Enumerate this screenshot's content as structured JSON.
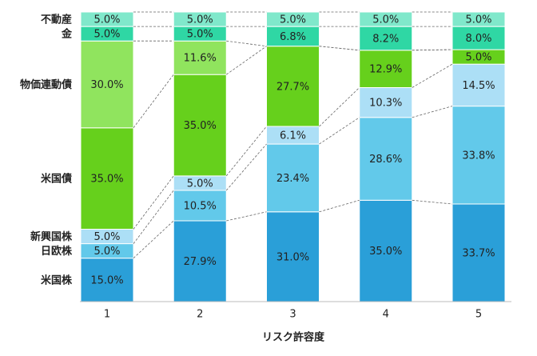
{
  "chart_data": {
    "type": "stacked-bar",
    "x_label": "リスク許容度",
    "categories": [
      "1",
      "2",
      "3",
      "4",
      "5"
    ],
    "series": [
      {
        "name": "米国株",
        "color": "#2a9fd8",
        "values": [
          15.0,
          27.9,
          31.0,
          35.0,
          33.7
        ],
        "value_labels": [
          "15.0%",
          "27.9%",
          "31.0%",
          "35.0%",
          "33.7%"
        ]
      },
      {
        "name": "日欧株",
        "color": "#62c9ea",
        "values": [
          5.0,
          10.5,
          23.4,
          28.6,
          33.8
        ],
        "value_labels": [
          "5.0%",
          "10.5%",
          "23.4%",
          "28.6%",
          "33.8%"
        ]
      },
      {
        "name": "新興国株",
        "color": "#acdff6",
        "values": [
          5.0,
          5.0,
          6.1,
          10.3,
          14.5
        ],
        "value_labels": [
          "5.0%",
          "5.0%",
          "6.1%",
          "10.3%",
          "14.5%"
        ]
      },
      {
        "name": "米国債",
        "color": "#66d01c",
        "values": [
          35.0,
          35.0,
          27.7,
          12.9,
          5.0
        ],
        "value_labels": [
          "35.0%",
          "35.0%",
          "27.7%",
          "12.9%",
          "5.0%"
        ]
      },
      {
        "name": "物価連動債",
        "color": "#90e45e",
        "values": [
          30.0,
          11.6,
          null,
          null,
          null
        ],
        "value_labels": [
          "30.0%",
          "11.6%",
          null,
          null,
          null
        ]
      },
      {
        "name": "金",
        "color": "#2fd7a4",
        "values": [
          5.0,
          5.0,
          6.8,
          8.2,
          8.0
        ],
        "value_labels": [
          "5.0%",
          "5.0%",
          "6.8%",
          "8.2%",
          "8.0%"
        ]
      },
      {
        "name": "不動産",
        "color": "#80e8cb",
        "values": [
          5.0,
          5.0,
          5.0,
          5.0,
          5.0
        ],
        "value_labels": [
          "5.0%",
          "5.0%",
          "5.0%",
          "5.0%",
          "5.0%"
        ]
      }
    ]
  }
}
